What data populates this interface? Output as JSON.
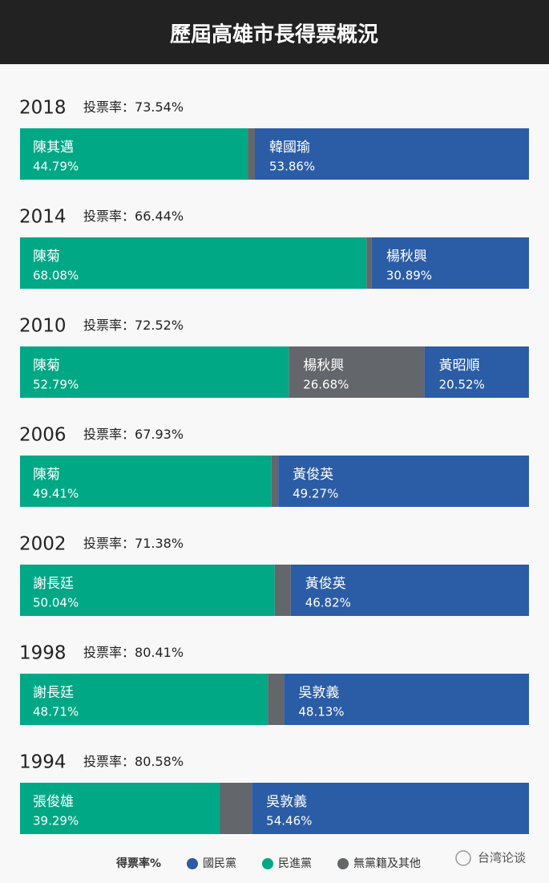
{
  "header": {
    "title": "歷屆高雄市長得票概況"
  },
  "chart_data": {
    "type": "stacked-bar",
    "xlim": [
      0,
      100
    ],
    "turnout_prefix": "投票率：",
    "legend_title": "得票率%",
    "legend": [
      {
        "name": "國民黨",
        "color": "#2b5ca6"
      },
      {
        "name": "民進黨",
        "color": "#00a886"
      },
      {
        "name": "無黨籍及其他",
        "color": "#63666b"
      }
    ],
    "elections": [
      {
        "year": "2018",
        "turnout": "73.54%",
        "segments": [
          {
            "candidate": "陳其邁",
            "value": 44.79,
            "value_label": "44.79%",
            "color": "#00a886"
          },
          {
            "value": 1.35,
            "color": "#63666b"
          },
          {
            "candidate": "韓國瑜",
            "value": 53.86,
            "value_label": "53.86%",
            "color": "#2b5ca6"
          }
        ]
      },
      {
        "year": "2014",
        "turnout": "66.44%",
        "segments": [
          {
            "candidate": "陳菊",
            "value": 68.08,
            "value_label": "68.08%",
            "color": "#00a886"
          },
          {
            "value": 1.03,
            "color": "#63666b"
          },
          {
            "candidate": "楊秋興",
            "value": 30.89,
            "value_label": "30.89%",
            "color": "#2b5ca6"
          }
        ]
      },
      {
        "year": "2010",
        "turnout": "72.52%",
        "segments": [
          {
            "candidate": "陳菊",
            "value": 52.79,
            "value_label": "52.79%",
            "color": "#00a886"
          },
          {
            "candidate": "楊秋興",
            "value": 26.68,
            "value_label": "26.68%",
            "color": "#63666b"
          },
          {
            "candidate": "黃昭順",
            "value": 20.52,
            "value_label": "20.52%",
            "color": "#2b5ca6"
          }
        ]
      },
      {
        "year": "2006",
        "turnout": "67.93%",
        "segments": [
          {
            "candidate": "陳菊",
            "value": 49.41,
            "value_label": "49.41%",
            "color": "#00a886"
          },
          {
            "value": 1.32,
            "color": "#63666b"
          },
          {
            "candidate": "黃俊英",
            "value": 49.27,
            "value_label": "49.27%",
            "color": "#2b5ca6"
          }
        ]
      },
      {
        "year": "2002",
        "turnout": "71.38%",
        "segments": [
          {
            "candidate": "謝長廷",
            "value": 50.04,
            "value_label": "50.04%",
            "color": "#00a886"
          },
          {
            "value": 3.14,
            "color": "#63666b"
          },
          {
            "candidate": "黃俊英",
            "value": 46.82,
            "value_label": "46.82%",
            "color": "#2b5ca6"
          }
        ]
      },
      {
        "year": "1998",
        "turnout": "80.41%",
        "segments": [
          {
            "candidate": "謝長廷",
            "value": 48.71,
            "value_label": "48.71%",
            "color": "#00a886"
          },
          {
            "value": 3.16,
            "color": "#63666b"
          },
          {
            "candidate": "吳敦義",
            "value": 48.13,
            "value_label": "48.13%",
            "color": "#2b5ca6"
          }
        ]
      },
      {
        "year": "1994",
        "turnout": "80.58%",
        "segments": [
          {
            "candidate": "張俊雄",
            "value": 39.29,
            "value_label": "39.29%",
            "color": "#00a886"
          },
          {
            "value": 6.25,
            "color": "#63666b"
          },
          {
            "candidate": "吳敦義",
            "value": 54.46,
            "value_label": "54.46%",
            "color": "#2b5ca6"
          }
        ]
      }
    ]
  },
  "watermark": "台湾论谈"
}
